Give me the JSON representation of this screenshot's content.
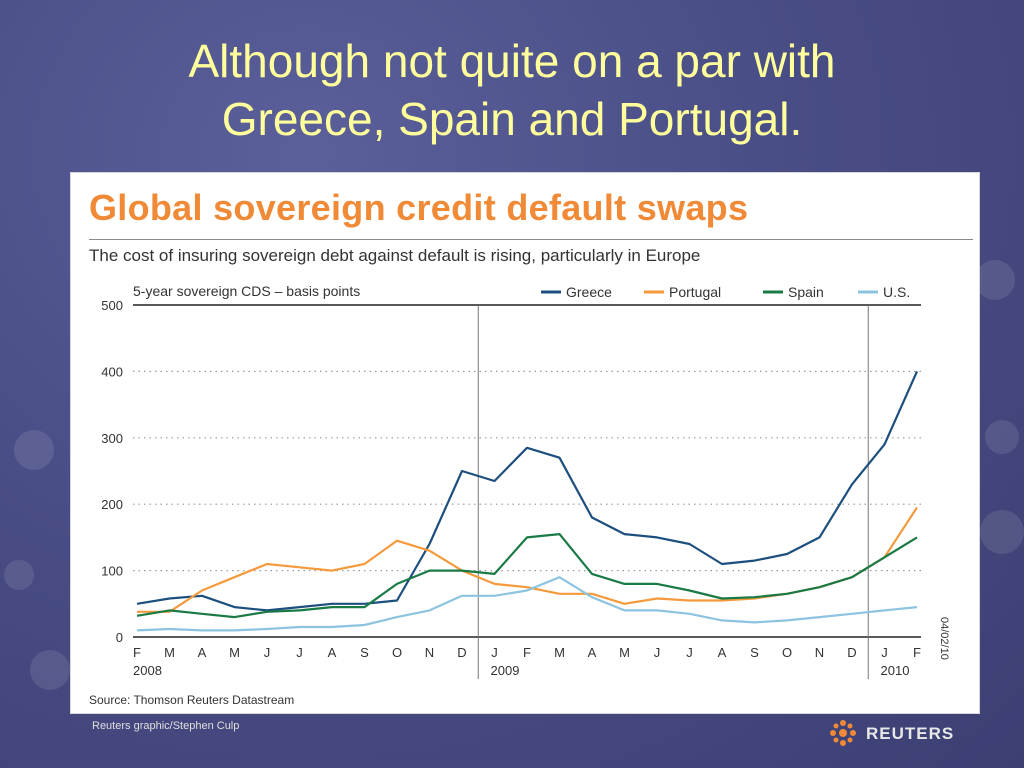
{
  "slide": {
    "title_line1": "Although not quite on a par with",
    "title_line2": "Greece, Spain and Portugal."
  },
  "chart_data": {
    "type": "line",
    "title": "Global sovereign credit default swaps",
    "subtitle": "The cost of insuring sovereign debt against default is rising, particularly in Europe",
    "ylabel": "5-year sovereign CDS – basis points",
    "ylim": [
      0,
      500
    ],
    "yticks": [
      0,
      100,
      200,
      300,
      400,
      500
    ],
    "x_months": [
      "F",
      "M",
      "A",
      "M",
      "J",
      "J",
      "A",
      "S",
      "O",
      "N",
      "D",
      "J",
      "F",
      "M",
      "A",
      "M",
      "J",
      "J",
      "A",
      "S",
      "O",
      "N",
      "D",
      "J",
      "F"
    ],
    "years": [
      {
        "label": "2008",
        "month_index": 0
      },
      {
        "label": "2009",
        "month_index": 11
      },
      {
        "label": "2010",
        "month_index": 23
      }
    ],
    "year_dividers_month_index": [
      10.5,
      22.5
    ],
    "date_stamp": "04/02/10",
    "grid": true,
    "legend_position": "top-right",
    "series": [
      {
        "name": "Greece",
        "color": "#1d4f7e",
        "values": [
          50,
          58,
          62,
          45,
          40,
          45,
          50,
          50,
          55,
          140,
          250,
          235,
          285,
          270,
          180,
          155,
          150,
          140,
          110,
          115,
          125,
          150,
          230,
          290,
          400
        ]
      },
      {
        "name": "Portugal",
        "color": "#f59a3c",
        "values": [
          38,
          38,
          70,
          90,
          110,
          105,
          100,
          110,
          145,
          130,
          100,
          80,
          75,
          65,
          65,
          50,
          58,
          55,
          55,
          58,
          65,
          75,
          90,
          120,
          195
        ]
      },
      {
        "name": "Spain",
        "color": "#1a7a45",
        "values": [
          32,
          40,
          35,
          30,
          38,
          40,
          45,
          45,
          80,
          100,
          100,
          95,
          150,
          155,
          95,
          80,
          80,
          70,
          58,
          60,
          65,
          75,
          90,
          120,
          150
        ]
      },
      {
        "name": "U.S.",
        "color": "#8cc4e0",
        "values": [
          10,
          12,
          10,
          10,
          12,
          15,
          15,
          18,
          30,
          40,
          62,
          62,
          70,
          90,
          60,
          40,
          40,
          35,
          25,
          22,
          25,
          30,
          35,
          40,
          45
        ]
      }
    ],
    "source": "Source: Thomson Reuters Datastream"
  },
  "footer": {
    "credit": "Reuters graphic/Stephen Culp",
    "brand": "REUTERS"
  }
}
